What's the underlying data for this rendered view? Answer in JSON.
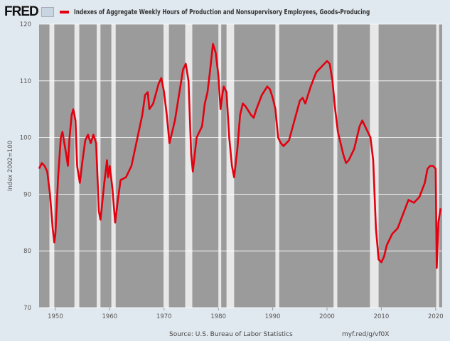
{
  "header": {
    "logo": "FRED",
    "series_title": "Indexes of Aggregate Weekly Hours of Production and Nonsupervisory Employees, Goods-Producing"
  },
  "footer": {
    "source": "Source: U.S. Bureau of Labor Statistics",
    "short_url": "myf.red/g/vf0X"
  },
  "chart_data": {
    "type": "line",
    "title": "Indexes of Aggregate Weekly Hours of Production and Nonsupervisory Employees, Goods-Producing",
    "xlabel": "",
    "ylabel": "Index 2002=100",
    "xlim": [
      1947,
      2021.2
    ],
    "ylim": [
      70,
      120
    ],
    "xticks": [
      1950,
      1960,
      1970,
      1980,
      1990,
      2000,
      2010,
      2020
    ],
    "yticks": [
      70,
      80,
      90,
      100,
      110,
      120
    ],
    "grid": true,
    "colors": {
      "line": "#e3000f",
      "plot_bg": "#9b9b9b",
      "recession": "#e8e8e8",
      "grid": "#ffffff"
    },
    "recessions": [
      [
        1948.9,
        1949.8
      ],
      [
        1953.5,
        1954.4
      ],
      [
        1957.6,
        1958.3
      ],
      [
        1960.3,
        1961.1
      ],
      [
        1969.9,
        1970.9
      ],
      [
        1973.9,
        1975.2
      ],
      [
        1980.0,
        1980.5
      ],
      [
        1981.5,
        1982.9
      ],
      [
        1990.5,
        1991.2
      ],
      [
        2001.2,
        2001.9
      ],
      [
        2007.9,
        2009.5
      ],
      [
        2020.1,
        2020.4
      ]
    ],
    "series": [
      {
        "name": "Indexes of Aggregate Weekly Hours of Production and Nonsupervisory Employees, Goods-Producing",
        "x": [
          1947,
          1947.5,
          1948,
          1948.5,
          1949,
          1949.5,
          1949.8,
          1950,
          1950.5,
          1951,
          1951.3,
          1952,
          1952.3,
          1952.6,
          1953,
          1953.3,
          1953.7,
          1954,
          1954.5,
          1955,
          1955.5,
          1956,
          1956.5,
          1957,
          1957.5,
          1958,
          1958.3,
          1959,
          1959.5,
          1959.7,
          1960,
          1960.5,
          1961,
          1961.5,
          1962,
          1963,
          1964,
          1965,
          1966,
          1966.5,
          1967,
          1967.3,
          1968,
          1969,
          1969.5,
          1970,
          1970.5,
          1971,
          1971.5,
          1972,
          1973,
          1973.5,
          1974,
          1974.5,
          1975,
          1975.3,
          1976,
          1977,
          1977.5,
          1978,
          1978.5,
          1979,
          1979.5,
          1980,
          1980.4,
          1980.8,
          1981,
          1981.5,
          1982,
          1982.5,
          1982.9,
          1983.5,
          1984,
          1984.5,
          1985,
          1986,
          1986.5,
          1987,
          1988,
          1989,
          1989.5,
          1990,
          1990.5,
          1991,
          1991.5,
          1992,
          1993,
          1994,
          1995,
          1995.5,
          1996,
          1997,
          1998,
          1999,
          2000,
          2000.5,
          2001,
          2001.5,
          2002,
          2003,
          2003.5,
          2004,
          2005,
          2006,
          2006.5,
          2007,
          2008,
          2008.5,
          2009,
          2009.5,
          2010,
          2010.5,
          2011,
          2012,
          2013,
          2014,
          2015,
          2016,
          2017,
          2018,
          2018.5,
          2019,
          2019.5,
          2020,
          2020.2,
          2020.5,
          2020.9
        ],
        "values": [
          94.5,
          95.5,
          95,
          94,
          90,
          84,
          81.5,
          83,
          93,
          100,
          101,
          97,
          95,
          100,
          104,
          105,
          103,
          95,
          92,
          96,
          99.5,
          100.5,
          99,
          100.5,
          99,
          87,
          85.5,
          92,
          96,
          93,
          95,
          91,
          85,
          89,
          92.5,
          93,
          95,
          99.5,
          104,
          107.5,
          108,
          105,
          106,
          109.5,
          110.5,
          108,
          104,
          99,
          101,
          103,
          109,
          112,
          113,
          110,
          97,
          94,
          100,
          102,
          106,
          108,
          112,
          116.5,
          115,
          111,
          105,
          108,
          109,
          108,
          100,
          95,
          93,
          98,
          104,
          106,
          105.5,
          104,
          103.5,
          105,
          107.5,
          109,
          108.5,
          107,
          105,
          100,
          99,
          98.5,
          99.5,
          103,
          106.5,
          107,
          106,
          109,
          111.5,
          112.5,
          113.5,
          113,
          110,
          105,
          101,
          97,
          95.5,
          96,
          98,
          102,
          103,
          102,
          100,
          96,
          84,
          78.5,
          78,
          79,
          81,
          83,
          84,
          86.5,
          89,
          88.5,
          89.5,
          92,
          94.5,
          95,
          95,
          94.5,
          77,
          85,
          87.5
        ]
      }
    ]
  }
}
